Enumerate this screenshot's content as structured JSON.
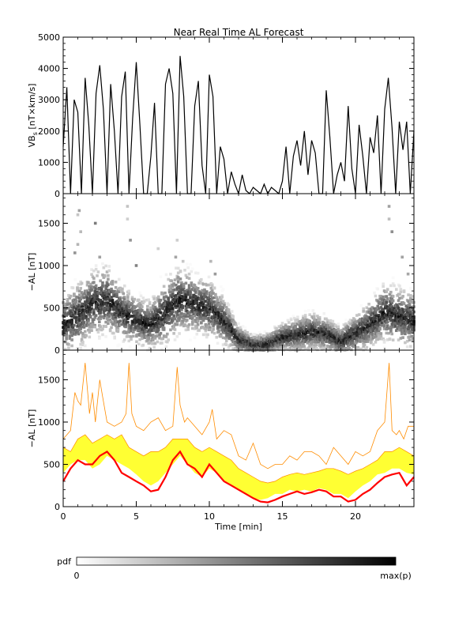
{
  "figure": {
    "title": "Near Real Time AL Forecast"
  },
  "chart_data": [
    {
      "type": "line",
      "ylabel": "VB",
      "ylabel_sub": "s",
      "ylabel_units": " [nT×km/s]",
      "xlim": [
        0,
        24
      ],
      "ylim": [
        0,
        5000
      ],
      "yticks": [
        0,
        1000,
        2000,
        3000,
        4000,
        5000
      ],
      "xticks": [
        0,
        5,
        10,
        15,
        20
      ],
      "series": [
        {
          "color": "#000000",
          "x": [
            0.0,
            0.25,
            0.5,
            0.75,
            1.0,
            1.25,
            1.5,
            1.75,
            2.0,
            2.25,
            2.5,
            2.75,
            3.0,
            3.25,
            3.5,
            3.75,
            4.0,
            4.25,
            4.5,
            4.75,
            5.0,
            5.25,
            5.5,
            5.75,
            6.0,
            6.25,
            6.5,
            6.75,
            7.0,
            7.25,
            7.5,
            7.75,
            8.0,
            8.25,
            8.5,
            8.75,
            9.0,
            9.25,
            9.5,
            9.75,
            10.0,
            10.25,
            10.5,
            10.75,
            11.0,
            11.25,
            11.5,
            11.75,
            12.0,
            12.25,
            12.5,
            12.75,
            13.0,
            13.25,
            13.5,
            13.75,
            14.0,
            14.25,
            14.5,
            14.75,
            15.0,
            15.25,
            15.5,
            15.75,
            16.0,
            16.25,
            16.5,
            16.75,
            17.0,
            17.25,
            17.5,
            17.75,
            18.0,
            18.25,
            18.5,
            18.75,
            19.0,
            19.25,
            19.5,
            19.75,
            20.0,
            20.25,
            20.5,
            20.75,
            21.0,
            21.25,
            21.5,
            21.75,
            22.0,
            22.25,
            22.5,
            22.75,
            23.0,
            23.25,
            23.5,
            23.75,
            24.0
          ],
          "y": [
            1500,
            3400,
            0,
            3000,
            2600,
            0,
            3700,
            2200,
            0,
            3200,
            4100,
            2700,
            0,
            3500,
            2000,
            0,
            3100,
            3900,
            0,
            2400,
            4200,
            2200,
            0,
            0,
            1200,
            2900,
            0,
            0,
            3500,
            4000,
            3200,
            0,
            4400,
            3100,
            0,
            0,
            2800,
            3600,
            900,
            0,
            3800,
            3100,
            0,
            1500,
            1100,
            0,
            700,
            300,
            0,
            600,
            100,
            0,
            200,
            100,
            0,
            300,
            0,
            200,
            100,
            0,
            400,
            1500,
            0,
            1200,
            1700,
            900,
            2000,
            600,
            1700,
            1300,
            0,
            0,
            3300,
            1800,
            0,
            600,
            1000,
            400,
            2800,
            800,
            0,
            2200,
            1200,
            0,
            1800,
            1300,
            2500,
            0,
            2700,
            3700,
            2100,
            0,
            2300,
            1400,
            2300,
            0,
            2000
          ]
        }
      ]
    },
    {
      "type": "heatmap",
      "ylabel": "−AL [nT]",
      "xlim": [
        0,
        24
      ],
      "ylim": [
        0,
        1850
      ],
      "yticks": [
        0,
        500,
        1000,
        1500
      ],
      "xticks": [
        0,
        5,
        10,
        15,
        20
      ],
      "centers": {
        "x": [
          0,
          1,
          2,
          3,
          4,
          5,
          6,
          7,
          8,
          9,
          10,
          11,
          12,
          13,
          14,
          15,
          16,
          17,
          18,
          19,
          20,
          21,
          22,
          23,
          24
        ],
        "y": [
          300,
          400,
          550,
          600,
          450,
          350,
          300,
          450,
          600,
          550,
          500,
          350,
          130,
          60,
          70,
          150,
          180,
          220,
          200,
          100,
          200,
          300,
          450,
          400,
          350
        ]
      },
      "spread": {
        "x": [
          0,
          1,
          2,
          3,
          4,
          5,
          6,
          7,
          8,
          9,
          10,
          11,
          12,
          13,
          14,
          15,
          16,
          17,
          18,
          19,
          20,
          21,
          22,
          23,
          24
        ],
        "y": [
          300,
          350,
          350,
          350,
          300,
          250,
          250,
          350,
          350,
          300,
          300,
          250,
          150,
          100,
          120,
          150,
          180,
          200,
          180,
          150,
          200,
          250,
          300,
          300,
          280
        ]
      },
      "outliers": [
        {
          "x": 1.1,
          "y": 1650
        },
        {
          "x": 1.0,
          "y": 1600
        },
        {
          "x": 1.2,
          "y": 1400
        },
        {
          "x": 1.0,
          "y": 1250
        },
        {
          "x": 0.8,
          "y": 1150
        },
        {
          "x": 2.2,
          "y": 1500
        },
        {
          "x": 2.5,
          "y": 1100
        },
        {
          "x": 4.4,
          "y": 1700
        },
        {
          "x": 4.4,
          "y": 1550
        },
        {
          "x": 4.6,
          "y": 1300
        },
        {
          "x": 5.0,
          "y": 1000
        },
        {
          "x": 6.5,
          "y": 1200
        },
        {
          "x": 7.8,
          "y": 1300
        },
        {
          "x": 7.7,
          "y": 1100
        },
        {
          "x": 8.2,
          "y": 1050
        },
        {
          "x": 10.1,
          "y": 1050
        },
        {
          "x": 10.4,
          "y": 900
        },
        {
          "x": 22.3,
          "y": 1700
        },
        {
          "x": 22.3,
          "y": 1550
        },
        {
          "x": 22.5,
          "y": 1400
        },
        {
          "x": 23.2,
          "y": 1100
        },
        {
          "x": 23.6,
          "y": 900
        }
      ]
    },
    {
      "type": "area",
      "ylabel": "−AL [nT]",
      "xlabel": "Time [min]",
      "xlim": [
        0,
        24
      ],
      "ylim": [
        0,
        1850
      ],
      "yticks": [
        0,
        500,
        1000,
        1500
      ],
      "xticks": [
        0,
        5,
        10,
        15,
        20
      ],
      "series": [
        {
          "role": "band",
          "color": "#ffff33",
          "x": [
            0.0,
            0.5,
            1.0,
            1.5,
            2.0,
            2.5,
            3.0,
            3.5,
            4.0,
            4.5,
            5.0,
            5.5,
            6.0,
            6.5,
            7.0,
            7.5,
            8.0,
            8.5,
            9.0,
            9.5,
            10.0,
            10.5,
            11.0,
            11.5,
            12.0,
            12.5,
            13.0,
            13.5,
            14.0,
            14.5,
            15.0,
            15.5,
            16.0,
            16.5,
            17.0,
            17.5,
            18.0,
            18.5,
            19.0,
            19.5,
            20.0,
            20.5,
            21.0,
            21.5,
            22.0,
            22.5,
            23.0,
            23.5,
            24.0
          ],
          "upper": [
            700,
            650,
            800,
            850,
            750,
            800,
            850,
            800,
            850,
            700,
            650,
            600,
            650,
            650,
            700,
            800,
            800,
            800,
            700,
            650,
            700,
            650,
            600,
            550,
            450,
            400,
            350,
            300,
            280,
            300,
            350,
            380,
            400,
            380,
            400,
            420,
            450,
            450,
            420,
            380,
            420,
            450,
            500,
            550,
            650,
            650,
            700,
            650,
            600
          ],
          "lower": [
            400,
            500,
            550,
            550,
            450,
            500,
            600,
            550,
            500,
            450,
            380,
            300,
            250,
            300,
            400,
            500,
            600,
            500,
            400,
            350,
            450,
            400,
            300,
            250,
            200,
            150,
            100,
            80,
            100,
            150,
            150,
            200,
            180,
            200,
            180,
            220,
            200,
            150,
            150,
            100,
            180,
            250,
            300,
            380,
            400,
            450,
            450,
            400,
            380
          ]
        },
        {
          "role": "envelope",
          "color": "#ff8c00",
          "x": [
            0.0,
            0.5,
            0.8,
            1.0,
            1.2,
            1.5,
            1.8,
            2.0,
            2.2,
            2.5,
            2.7,
            3.0,
            3.5,
            4.0,
            4.3,
            4.5,
            4.7,
            5.0,
            5.5,
            6.0,
            6.5,
            7.0,
            7.5,
            7.8,
            8.0,
            8.3,
            8.5,
            9.0,
            9.5,
            10.0,
            10.2,
            10.5,
            11.0,
            11.5,
            12.0,
            12.5,
            13.0,
            13.5,
            14.0,
            14.5,
            15.0,
            15.5,
            16.0,
            16.5,
            17.0,
            17.5,
            18.0,
            18.5,
            19.0,
            19.5,
            20.0,
            20.5,
            21.0,
            21.5,
            22.0,
            22.3,
            22.5,
            22.8,
            23.0,
            23.3,
            23.6,
            24.0
          ],
          "y": [
            800,
            900,
            1350,
            1250,
            1200,
            1700,
            1100,
            1350,
            1000,
            1500,
            1300,
            1000,
            950,
            1000,
            1100,
            1700,
            1100,
            950,
            900,
            1000,
            1050,
            900,
            950,
            1650,
            1200,
            1000,
            1050,
            950,
            850,
            1000,
            1150,
            800,
            900,
            850,
            600,
            550,
            750,
            500,
            450,
            500,
            500,
            600,
            550,
            650,
            650,
            600,
            500,
            700,
            600,
            500,
            650,
            600,
            650,
            900,
            1000,
            1700,
            900,
            850,
            900,
            800,
            950,
            950
          ]
        },
        {
          "role": "median",
          "color": "#ff0000",
          "x": [
            0.0,
            0.5,
            1.0,
            1.5,
            2.0,
            2.5,
            3.0,
            3.5,
            4.0,
            4.5,
            5.0,
            5.5,
            6.0,
            6.5,
            7.0,
            7.5,
            8.0,
            8.5,
            9.0,
            9.5,
            10.0,
            10.5,
            11.0,
            11.5,
            12.0,
            12.5,
            13.0,
            13.5,
            14.0,
            14.5,
            15.0,
            15.5,
            16.0,
            16.5,
            17.0,
            17.5,
            18.0,
            18.5,
            19.0,
            19.5,
            20.0,
            20.5,
            21.0,
            21.5,
            22.0,
            22.5,
            23.0,
            23.5,
            24.0
          ],
          "y": [
            300,
            450,
            550,
            500,
            500,
            600,
            650,
            550,
            400,
            350,
            300,
            250,
            180,
            200,
            350,
            550,
            650,
            500,
            450,
            350,
            500,
            400,
            300,
            250,
            200,
            150,
            100,
            60,
            50,
            80,
            120,
            150,
            180,
            150,
            170,
            200,
            180,
            120,
            120,
            60,
            80,
            150,
            200,
            280,
            350,
            380,
            400,
            250,
            350
          ]
        }
      ]
    }
  ],
  "colorbar": {
    "label": "pdf",
    "min_label": "0",
    "max_label": "max(p)"
  }
}
